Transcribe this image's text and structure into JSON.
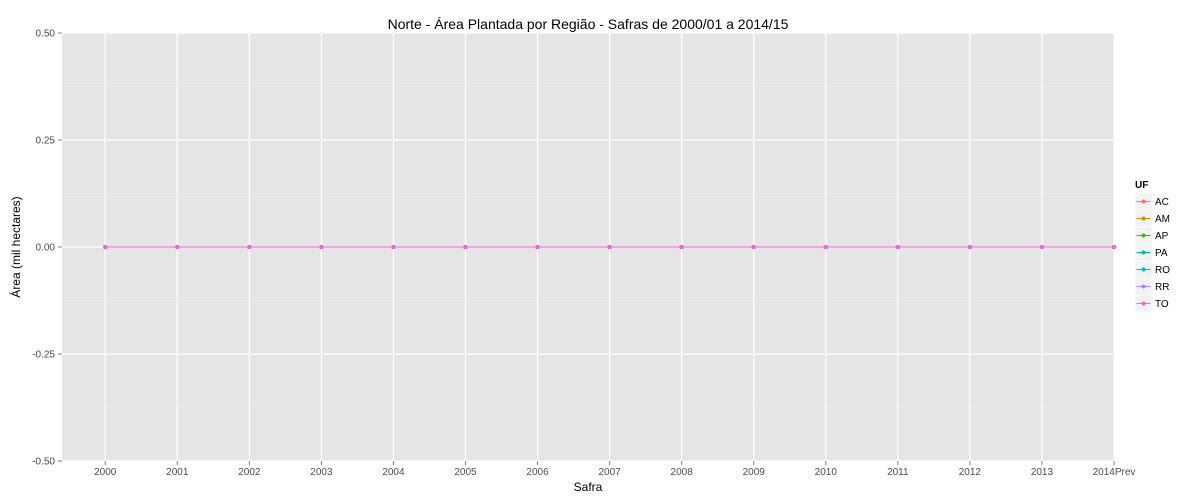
{
  "chart_data": {
    "type": "line",
    "title": "Norte  - Área Plantada por Região - Safras de 2000/01 a 2014/15",
    "xlabel": "Safra",
    "ylabel": "Área (mil hectares)",
    "categories": [
      "2000",
      "2001",
      "2002",
      "2003",
      "2004",
      "2005",
      "2006",
      "2007",
      "2008",
      "2009",
      "2010",
      "2011",
      "2012",
      "2013",
      "2014Prev"
    ],
    "ylim": [
      -0.5,
      0.5
    ],
    "yticks": [
      -0.5,
      -0.25,
      0.0,
      0.25,
      0.5
    ],
    "ytick_labels": [
      "-0.50",
      "-0.25",
      "0.00",
      "0.25",
      "0.50"
    ],
    "grid": true,
    "legend": {
      "title": "UF",
      "position": "right"
    },
    "series": [
      {
        "name": "AC",
        "color": "#F8766D",
        "values": [
          0,
          0,
          0,
          0,
          0,
          0,
          0,
          0,
          0,
          0,
          0,
          0,
          0,
          0,
          0
        ]
      },
      {
        "name": "AM",
        "color": "#C49A00",
        "values": [
          0,
          0,
          0,
          0,
          0,
          0,
          0,
          0,
          0,
          0,
          0,
          0,
          0,
          0,
          0
        ]
      },
      {
        "name": "AP",
        "color": "#53B400",
        "values": [
          0,
          0,
          0,
          0,
          0,
          0,
          0,
          0,
          0,
          0,
          0,
          0,
          0,
          0,
          0
        ]
      },
      {
        "name": "PA",
        "color": "#00C094",
        "values": [
          0,
          0,
          0,
          0,
          0,
          0,
          0,
          0,
          0,
          0,
          0,
          0,
          0,
          0,
          0
        ]
      },
      {
        "name": "RO",
        "color": "#00B6EB",
        "values": [
          0,
          0,
          0,
          0,
          0,
          0,
          0,
          0,
          0,
          0,
          0,
          0,
          0,
          0,
          0
        ]
      },
      {
        "name": "RR",
        "color": "#A58AFF",
        "values": [
          0,
          0,
          0,
          0,
          0,
          0,
          0,
          0,
          0,
          0,
          0,
          0,
          0,
          0,
          0
        ]
      },
      {
        "name": "TO",
        "color": "#FB61D7",
        "values": [
          0,
          0,
          0,
          0,
          0,
          0,
          0,
          0,
          0,
          0,
          0,
          0,
          0,
          0,
          0
        ]
      }
    ]
  }
}
